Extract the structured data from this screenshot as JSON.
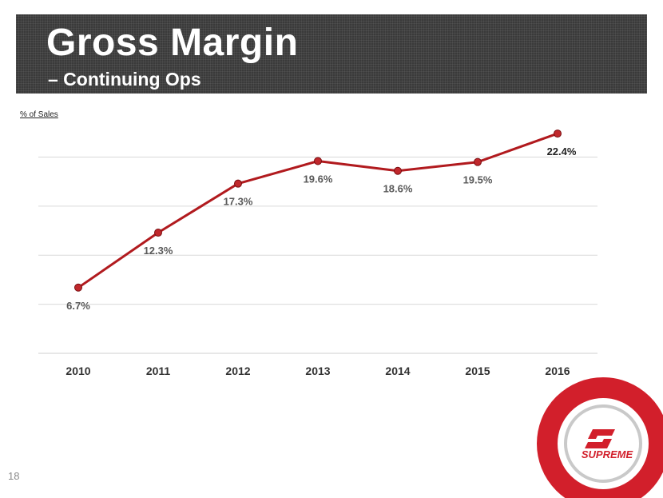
{
  "header": {
    "title": "Gross Margin",
    "subtitle": "– Continuing Ops"
  },
  "colors": {
    "band": "#3a3a3a",
    "line": "#b11a1e",
    "marker": "#c0282c",
    "grid": "#d9d9d9",
    "label": "#595959",
    "logo_red": "#d21f2b"
  },
  "chart_data": {
    "type": "line",
    "title": "Gross Margin – Continuing Ops",
    "ylabel": "% of Sales",
    "xlabel": "",
    "categories": [
      "2010",
      "2011",
      "2012",
      "2013",
      "2014",
      "2015",
      "2016"
    ],
    "series": [
      {
        "name": "Gross Margin %",
        "values": [
          6.7,
          12.3,
          17.3,
          19.6,
          18.6,
          19.5,
          22.4
        ]
      }
    ],
    "data_labels": [
      "6.7%",
      "12.3%",
      "17.3%",
      "19.6%",
      "18.6%",
      "19.5%",
      "22.4%"
    ],
    "ylim": [
      0,
      22
    ],
    "grid": true,
    "legend": "none"
  },
  "footer": {
    "page_number": "18"
  },
  "logo": {
    "text": "SUPREME",
    "icon": "supreme-s-icon"
  }
}
